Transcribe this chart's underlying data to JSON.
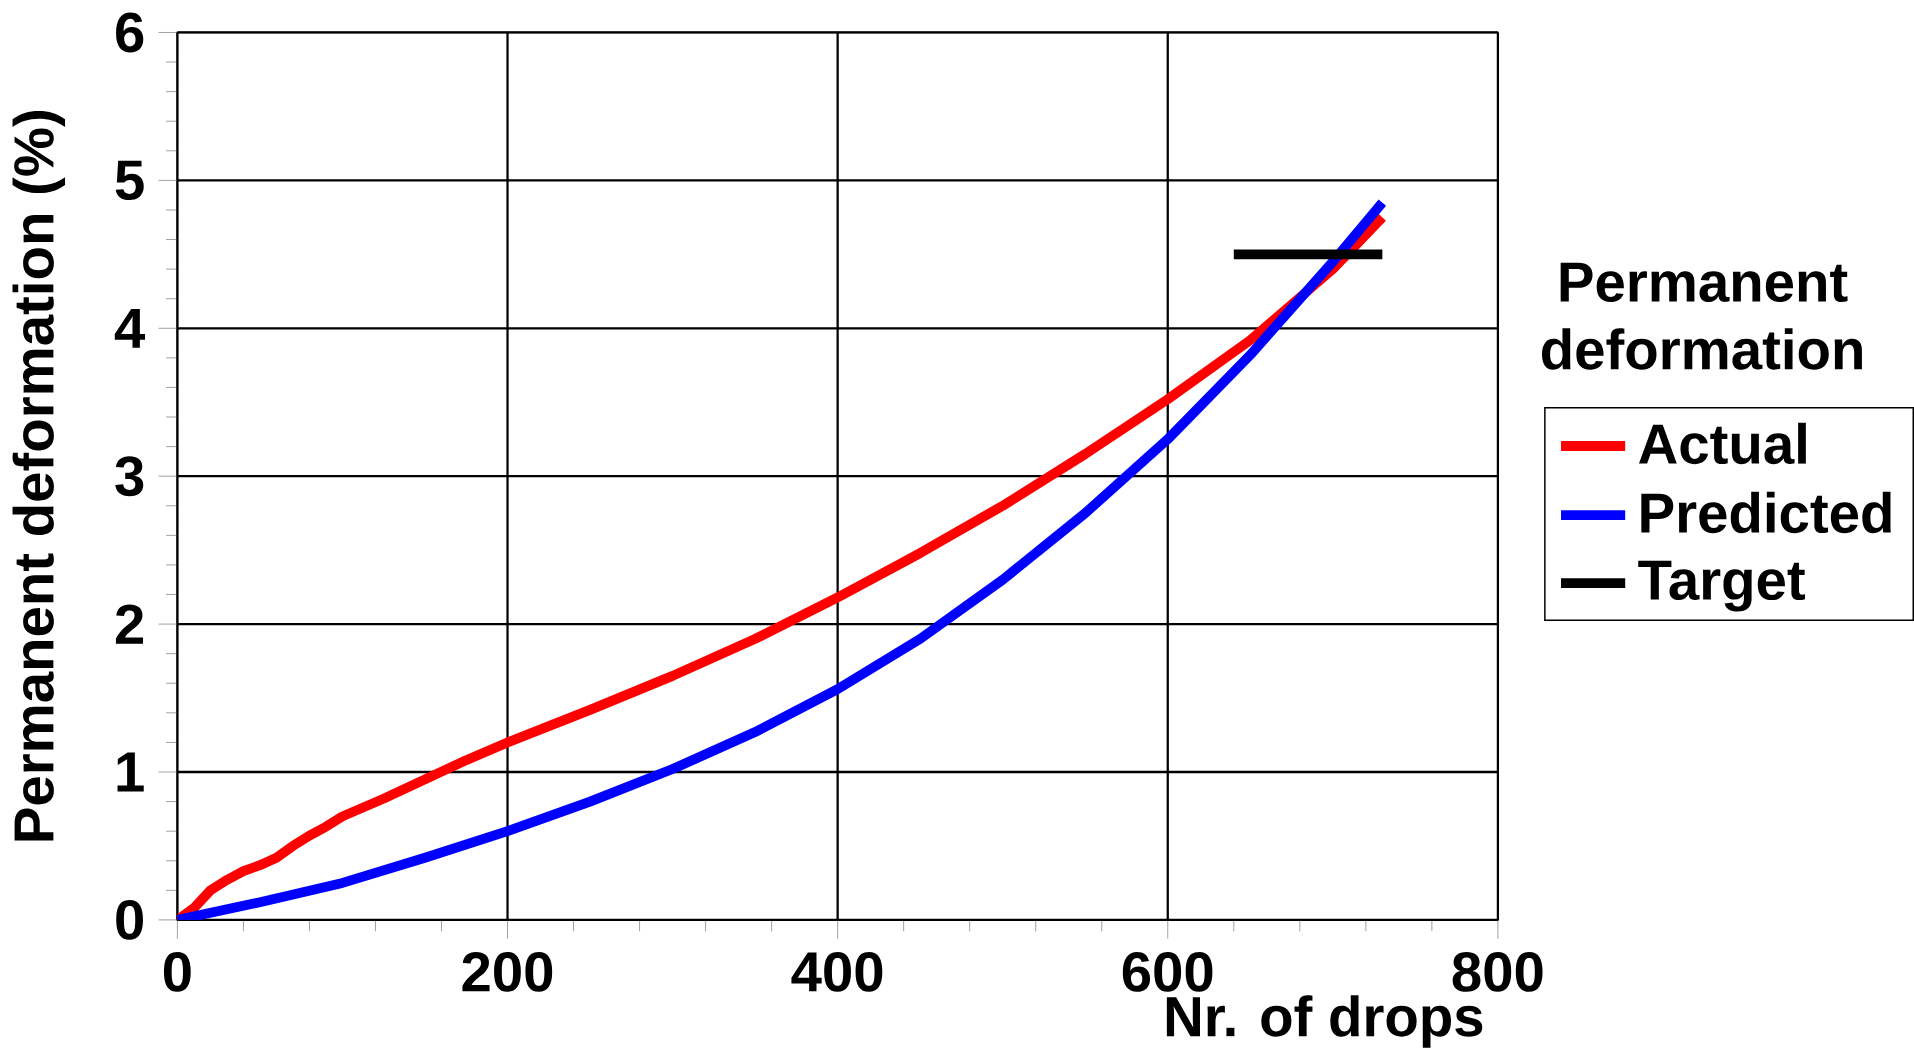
{
  "chart_data": {
    "type": "line",
    "xlabel": "Nr. of drops",
    "ylabel": "Permanent deformation (%)",
    "legend_title": "Permanent deformation",
    "xlim": [
      0,
      800
    ],
    "xticks": [
      0,
      200,
      400,
      600,
      800
    ],
    "ylim": [
      0,
      6
    ],
    "yticks": [
      0,
      1,
      2,
      3,
      4,
      5,
      6
    ],
    "grid": true,
    "legend": "right",
    "marker": "none",
    "line_style": "solid",
    "series": [
      {
        "name": "Actual",
        "color": "#ff0000",
        "x": [
          0,
          10,
          20,
          30,
          40,
          50,
          60,
          70,
          80,
          90,
          100,
          125,
          150,
          175,
          200,
          250,
          300,
          350,
          400,
          450,
          500,
          550,
          600,
          650,
          700,
          730
        ],
        "values": [
          0,
          0.08,
          0.2,
          0.27,
          0.33,
          0.37,
          0.42,
          0.5,
          0.57,
          0.63,
          0.7,
          0.82,
          0.95,
          1.08,
          1.2,
          1.42,
          1.65,
          1.9,
          2.18,
          2.48,
          2.8,
          3.15,
          3.52,
          3.92,
          4.4,
          4.75
        ]
      },
      {
        "name": "Predicted",
        "color": "#0000ff",
        "x": [
          0,
          50,
          100,
          150,
          200,
          250,
          300,
          350,
          400,
          450,
          500,
          550,
          600,
          650,
          700,
          730
        ],
        "values": [
          0,
          0.12,
          0.25,
          0.42,
          0.6,
          0.8,
          1.02,
          1.27,
          1.56,
          1.9,
          2.3,
          2.75,
          3.25,
          3.82,
          4.45,
          4.85
        ]
      },
      {
        "name": "Target",
        "color": "#000000",
        "x": [
          640,
          730
        ],
        "values": [
          4.5,
          4.5
        ]
      }
    ]
  }
}
